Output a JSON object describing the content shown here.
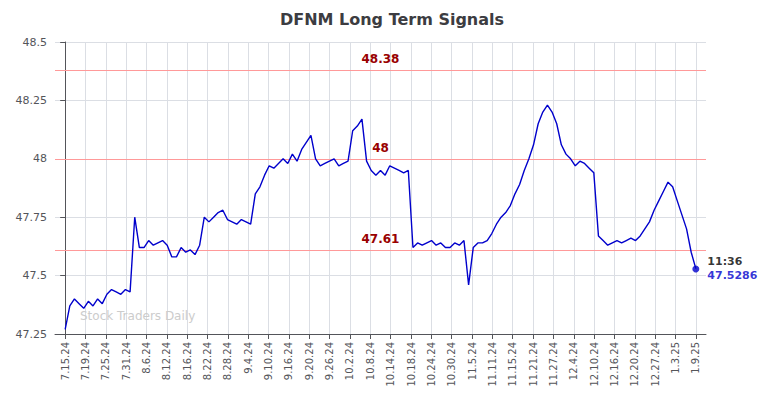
{
  "chart_data": {
    "type": "line",
    "title": "DFNM Long Term Signals",
    "color": "#0000cc",
    "x": [
      0,
      0.2279,
      0.4559,
      0.6838,
      0.9118,
      1.1397,
      1.3676,
      1.5956,
      1.8235,
      2.0515,
      2.2794,
      2.5074,
      2.7353,
      2.9632,
      3.1912,
      3.4191,
      3.6471,
      3.875,
      4.1029,
      4.3309,
      4.5588,
      4.7868,
      5.0147,
      5.2426,
      5.4706,
      5.6985,
      5.9265,
      6.1544,
      6.3824,
      6.6103,
      6.8382,
      7.0662,
      7.2941,
      7.5221,
      7.75,
      7.9779,
      8.2059,
      8.4338,
      8.6618,
      8.8897,
      9.1176,
      9.3456,
      9.5735,
      9.8015,
      10.0294,
      10.2574,
      10.4853,
      10.7132,
      10.9412,
      11.1691,
      11.3971,
      11.625,
      11.8529,
      12.0809,
      12.3088,
      12.5368,
      12.7647,
      12.9926,
      13.2206,
      13.4485,
      13.6765,
      13.9044,
      14.1324,
      14.3603,
      14.5882,
      14.8162,
      15.0441,
      15.2721,
      15.5,
      15.7279,
      15.9559,
      16.1838,
      16.4118,
      16.6397,
      16.8676,
      17.0956,
      17.3235,
      17.5515,
      17.7794,
      18.0074,
      18.2353,
      18.4632,
      18.6912,
      18.9191,
      19.1471,
      19.375,
      19.6029,
      19.8309,
      20.0588,
      20.2868,
      20.5147,
      20.7426,
      20.9706,
      21.1985,
      21.4265,
      21.6544,
      21.8824,
      22.1103,
      22.3382,
      22.5662,
      22.7941,
      23.0221,
      23.25,
      23.4779,
      23.7059,
      23.9338,
      24.1618,
      24.3897,
      24.6176,
      24.8456,
      25.0735,
      25.3015,
      25.5294,
      25.7574,
      25.9853,
      26.2132,
      26.4412,
      26.6691,
      26.8971,
      27.125,
      27.3529,
      27.5809,
      27.8088,
      28.0368,
      28.2647,
      28.4926,
      28.7206,
      28.9485,
      29.1765,
      29.4044,
      29.6324,
      29.8603,
      30.0882,
      30.3162,
      30.5441,
      30.7721,
      31
    ],
    "values": [
      47.27,
      47.37,
      47.4,
      47.38,
      47.36,
      47.39,
      47.37,
      47.4,
      47.38,
      47.42,
      47.44,
      47.43,
      47.42,
      47.44,
      47.43,
      47.75,
      47.62,
      47.62,
      47.65,
      47.63,
      47.64,
      47.65,
      47.63,
      47.58,
      47.58,
      47.62,
      47.6,
      47.61,
      47.59,
      47.63,
      47.75,
      47.73,
      47.75,
      47.77,
      47.78,
      47.74,
      47.73,
      47.72,
      47.74,
      47.73,
      47.72,
      47.85,
      47.88,
      47.93,
      47.97,
      47.96,
      47.98,
      48.0,
      47.98,
      48.02,
      47.99,
      48.04,
      48.07,
      48.1,
      48.0,
      47.97,
      47.98,
      47.99,
      48.0,
      47.97,
      47.98,
      47.99,
      48.12,
      48.14,
      48.17,
      47.99,
      47.95,
      47.93,
      47.95,
      47.93,
      47.97,
      47.96,
      47.95,
      47.94,
      47.95,
      47.62,
      47.64,
      47.63,
      47.64,
      47.65,
      47.63,
      47.64,
      47.62,
      47.62,
      47.64,
      47.63,
      47.65,
      47.46,
      47.62,
      47.64,
      47.64,
      47.65,
      47.68,
      47.72,
      47.75,
      47.77,
      47.8,
      47.85,
      47.89,
      47.95,
      48.0,
      48.06,
      48.15,
      48.2,
      48.23,
      48.2,
      48.15,
      48.06,
      48.02,
      48.0,
      47.97,
      47.99,
      47.98,
      47.96,
      47.94,
      47.67,
      47.65,
      47.63,
      47.64,
      47.65,
      47.64,
      47.65,
      47.66,
      47.65,
      47.67,
      47.7,
      47.73,
      47.78,
      47.82,
      47.86,
      47.9,
      47.88,
      47.82,
      47.76,
      47.7,
      47.6,
      47.53
    ],
    "xlim": [
      -0.5,
      31.5
    ],
    "xticks": [
      {
        "value": 0,
        "label": "7.15.24"
      },
      {
        "value": 1,
        "label": "7.19.24"
      },
      {
        "value": 2,
        "label": "7.25.24"
      },
      {
        "value": 3,
        "label": "7.31.24"
      },
      {
        "value": 4,
        "label": "8.6.24"
      },
      {
        "value": 5,
        "label": "8.12.24"
      },
      {
        "value": 6,
        "label": "8.16.24"
      },
      {
        "value": 7,
        "label": "8.22.24"
      },
      {
        "value": 8,
        "label": "8.28.24"
      },
      {
        "value": 9,
        "label": "9.4.24"
      },
      {
        "value": 10,
        "label": "9.10.24"
      },
      {
        "value": 11,
        "label": "9.16.24"
      },
      {
        "value": 12,
        "label": "9.20.24"
      },
      {
        "value": 13,
        "label": "9.26.24"
      },
      {
        "value": 14,
        "label": "10.2.24"
      },
      {
        "value": 15,
        "label": "10.8.24"
      },
      {
        "value": 16,
        "label": "10.14.24"
      },
      {
        "value": 17,
        "label": "10.18.24"
      },
      {
        "value": 18,
        "label": "10.24.24"
      },
      {
        "value": 19,
        "label": "10.30.24"
      },
      {
        "value": 20,
        "label": "11.5.24"
      },
      {
        "value": 21,
        "label": "11.11.24"
      },
      {
        "value": 22,
        "label": "11.15.24"
      },
      {
        "value": 23,
        "label": "11.21.24"
      },
      {
        "value": 24,
        "label": "11.27.24"
      },
      {
        "value": 25,
        "label": "12.4.24"
      },
      {
        "value": 26,
        "label": "12.10.24"
      },
      {
        "value": 27,
        "label": "12.16.24"
      },
      {
        "value": 28,
        "label": "12.20.24"
      },
      {
        "value": 29,
        "label": "12.27.24"
      },
      {
        "value": 30,
        "label": "1.3.25"
      },
      {
        "value": 31,
        "label": "1.9.25"
      }
    ],
    "ylim": [
      47.25,
      48.5
    ],
    "yticks": [
      47.25,
      47.5,
      47.75,
      48,
      48.25,
      48.5
    ],
    "grid": true,
    "hlines": [
      {
        "value": 48.38,
        "label": "48.38",
        "color": "#ff9999",
        "label_color": "#990000"
      },
      {
        "value": 48,
        "label": "48",
        "color": "#ff9999",
        "label_color": "#990000"
      },
      {
        "value": 47.61,
        "label": "47.61",
        "color": "#ff9999",
        "label_color": "#990000"
      }
    ],
    "last_point": {
      "x": 31,
      "y": 47.5286,
      "label": "47.5286",
      "color": "#0000cc",
      "time_label": "11:36",
      "time_color": "#000000"
    },
    "watermark": {
      "text": "Stock Traders Daily",
      "color": "#cccccc"
    }
  }
}
